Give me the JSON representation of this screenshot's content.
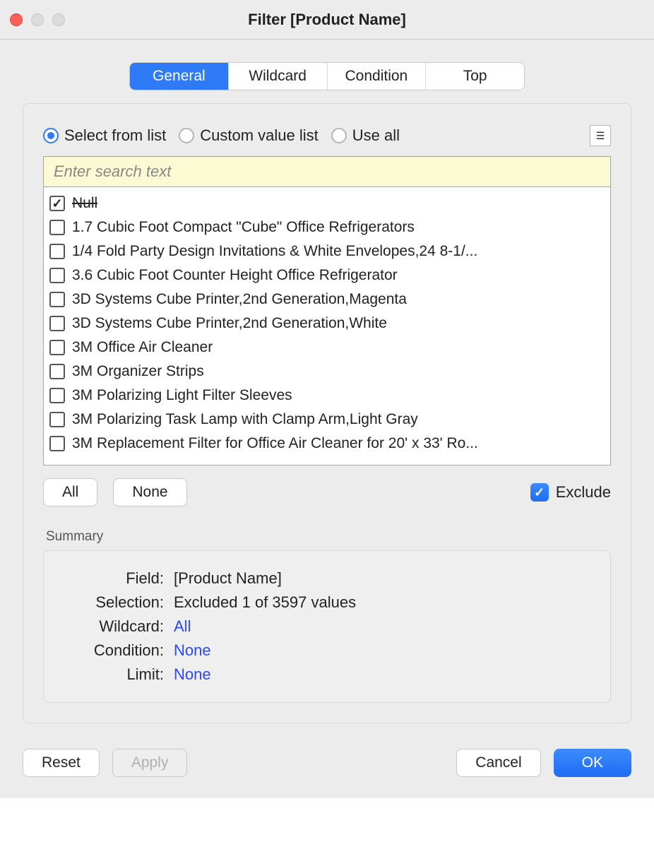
{
  "window": {
    "title": "Filter [Product Name]"
  },
  "tabs": [
    {
      "label": "General",
      "active": true
    },
    {
      "label": "Wildcard",
      "active": false
    },
    {
      "label": "Condition",
      "active": false
    },
    {
      "label": "Top",
      "active": false
    }
  ],
  "mode": {
    "options": [
      {
        "key": "list",
        "label": "Select from list",
        "checked": true
      },
      {
        "key": "custom",
        "label": "Custom value list",
        "checked": false
      },
      {
        "key": "all",
        "label": "Use all",
        "checked": false
      }
    ]
  },
  "search": {
    "placeholder": "Enter search text",
    "value": ""
  },
  "list": {
    "items": [
      {
        "label": "Null",
        "checked": true,
        "strike": true
      },
      {
        "label": "1.7 Cubic Foot Compact \"Cube\" Office Refrigerators",
        "checked": false
      },
      {
        "label": "1/4 Fold Party Design Invitations & White Envelopes,24 8-1/...",
        "checked": false
      },
      {
        "label": "3.6 Cubic Foot Counter Height Office Refrigerator",
        "checked": false
      },
      {
        "label": "3D Systems Cube Printer,2nd Generation,Magenta",
        "checked": false
      },
      {
        "label": "3D Systems Cube Printer,2nd Generation,White",
        "checked": false
      },
      {
        "label": "3M Office Air Cleaner",
        "checked": false
      },
      {
        "label": "3M Organizer Strips",
        "checked": false
      },
      {
        "label": "3M Polarizing Light Filter Sleeves",
        "checked": false
      },
      {
        "label": "3M Polarizing Task Lamp with Clamp Arm,Light Gray",
        "checked": false
      },
      {
        "label": "3M Replacement Filter for Office Air Cleaner for 20' x 33' Ro...",
        "checked": false
      }
    ]
  },
  "buttons": {
    "all": "All",
    "none": "None"
  },
  "exclude": {
    "label": "Exclude",
    "checked": true
  },
  "summary": {
    "heading": "Summary",
    "rows": [
      {
        "label": "Field:",
        "value": "[Product Name]",
        "link": false
      },
      {
        "label": "Selection:",
        "value": "Excluded 1 of 3597 values",
        "link": false
      },
      {
        "label": "Wildcard:",
        "value": "All",
        "link": true
      },
      {
        "label": "Condition:",
        "value": "None",
        "link": true
      },
      {
        "label": "Limit:",
        "value": "None",
        "link": true
      }
    ]
  },
  "footer": {
    "reset": "Reset",
    "apply": "Apply",
    "cancel": "Cancel",
    "ok": "OK"
  }
}
